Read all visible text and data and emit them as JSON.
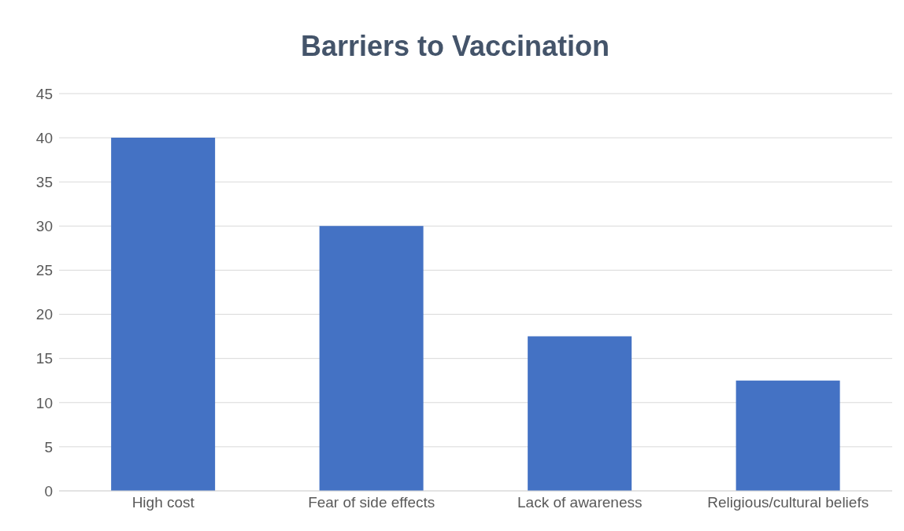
{
  "chart_data": {
    "type": "bar",
    "title": "Barriers to Vaccination",
    "categories": [
      "High cost",
      "Fear of side effects",
      "Lack of awareness",
      "Religious/cultural beliefs"
    ],
    "values": [
      40,
      30,
      17.5,
      12.5
    ],
    "color": "#4472c4",
    "ylim": [
      0,
      45
    ],
    "yticks": [
      0,
      5,
      10,
      15,
      20,
      25,
      30,
      35,
      40,
      45
    ],
    "grid": "y"
  }
}
